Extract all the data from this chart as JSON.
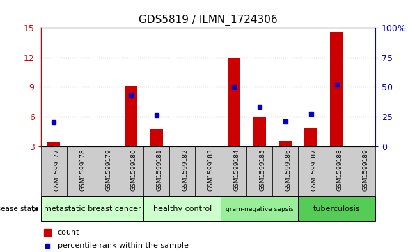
{
  "title": "GDS5819 / ILMN_1724306",
  "samples": [
    "GSM1599177",
    "GSM1599178",
    "GSM1599179",
    "GSM1599180",
    "GSM1599181",
    "GSM1599182",
    "GSM1599183",
    "GSM1599184",
    "GSM1599185",
    "GSM1599186",
    "GSM1599187",
    "GSM1599188",
    "GSM1599189"
  ],
  "count_values": [
    3.4,
    3.0,
    3.0,
    9.1,
    4.7,
    3.0,
    3.0,
    12.0,
    6.0,
    3.5,
    4.8,
    14.6,
    3.0
  ],
  "percentile_values": [
    20,
    null,
    null,
    43,
    26,
    null,
    null,
    50,
    33,
    21,
    27,
    52,
    null
  ],
  "ylim": [
    3,
    15
  ],
  "yticks": [
    3,
    6,
    9,
    12,
    15
  ],
  "right_yticks_pct": [
    0,
    25,
    50,
    75,
    100
  ],
  "right_yticks_val": [
    3,
    6,
    9,
    12,
    15
  ],
  "disease_groups": [
    {
      "label": "metastatic breast cancer",
      "start": 0,
      "end": 3,
      "color": "#ccffcc"
    },
    {
      "label": "healthy control",
      "start": 4,
      "end": 6,
      "color": "#ccffcc"
    },
    {
      "label": "gram-negative sepsis",
      "start": 7,
      "end": 9,
      "color": "#99ee99"
    },
    {
      "label": "tuberculosis",
      "start": 10,
      "end": 12,
      "color": "#55cc55"
    }
  ],
  "bar_color": "#cc0000",
  "percentile_color": "#0000cc",
  "bar_width": 0.5,
  "bg_plot": "#ffffff",
  "bg_sample_row": "#cccccc",
  "bg_fig": "#ffffff",
  "n_samples": 13
}
